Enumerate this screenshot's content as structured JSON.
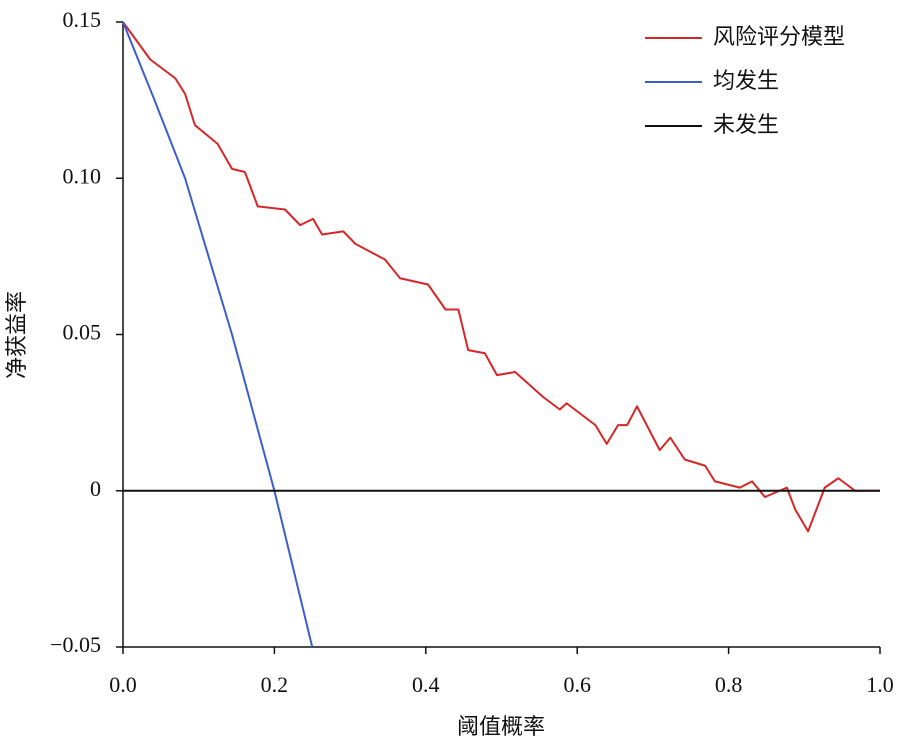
{
  "chart_data": {
    "type": "line",
    "xlabel": "阈值概率",
    "ylabel": "净获益率",
    "xlim": [
      0,
      1
    ],
    "ylim": [
      -0.05,
      0.15
    ],
    "xticks": [
      {
        "value": 0,
        "label": "0.0"
      },
      0.2,
      0.4,
      0.6,
      0.8,
      {
        "value": 1,
        "label": "1.0"
      }
    ],
    "yticks": [
      {
        "value": -0.05,
        "label": "−0.05"
      },
      0,
      0.05,
      {
        "value": 0.1,
        "label": "0.10"
      },
      0.15
    ],
    "legend": "upper right",
    "series": [
      {
        "name": "风险评分模型",
        "color": "#d62728",
        "x": [
          0,
          0.036,
          0.069,
          0.082,
          0.095,
          0.125,
          0.144,
          0.161,
          0.178,
          0.214,
          0.234,
          0.251,
          0.263,
          0.291,
          0.307,
          0.346,
          0.366,
          0.403,
          0.426,
          0.443,
          0.456,
          0.478,
          0.494,
          0.518,
          0.555,
          0.577,
          0.586,
          0.624,
          0.639,
          0.654,
          0.666,
          0.679,
          0.709,
          0.723,
          0.742,
          0.769,
          0.782,
          0.815,
          0.831,
          0.848,
          0.877,
          0.888,
          0.905,
          0.927,
          0.945,
          0.967,
          1
        ],
        "values": [
          0.15,
          0.138,
          0.132,
          0.127,
          0.117,
          0.111,
          0.103,
          0.102,
          0.091,
          0.09,
          0.085,
          0.087,
          0.082,
          0.083,
          0.079,
          0.074,
          0.068,
          0.066,
          0.058,
          0.058,
          0.045,
          0.044,
          0.037,
          0.038,
          0.03,
          0.026,
          0.028,
          0.021,
          0.015,
          0.021,
          0.021,
          0.027,
          0.013,
          0.017,
          0.01,
          0.008,
          0.003,
          0.001,
          0.003,
          -0.002,
          0.001,
          -0.006,
          -0.013,
          0.001,
          0.004,
          0,
          0
        ]
      },
      {
        "name": "均发生",
        "color": "#3a5fcd",
        "x": [
          0,
          0.04,
          0.082,
          0.144,
          0.2,
          0.25
        ],
        "values": [
          0.15,
          0.126,
          0.1,
          0.05,
          0,
          -0.05
        ]
      },
      {
        "name": "未发生",
        "color": "#111111",
        "x": [
          0,
          1
        ],
        "values": [
          0,
          0
        ]
      }
    ]
  }
}
